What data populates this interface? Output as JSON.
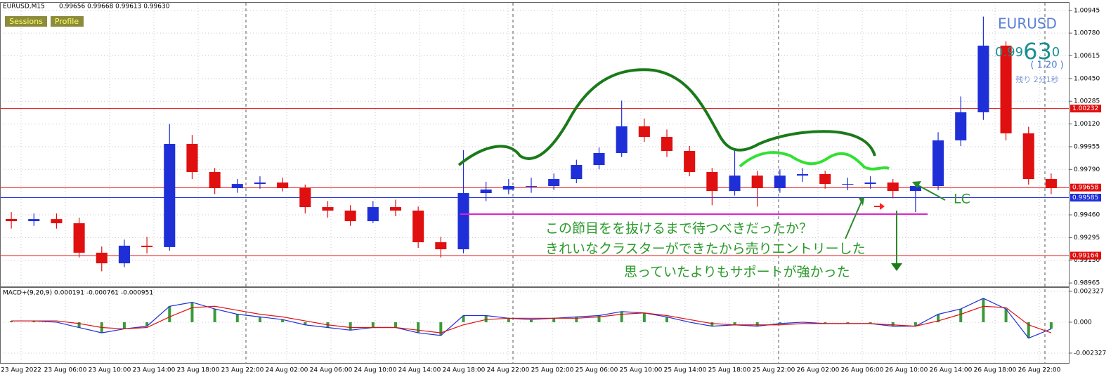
{
  "header": {
    "symbol": "EURUSD,M15",
    "ohlc": "0.99656 0.99668 0.99613 0.99630"
  },
  "buttons": [
    "Sessions",
    "Profile"
  ],
  "ticker": {
    "symbol": "EURUSD",
    "price_prefix": "0.99",
    "price_main": "63",
    "price_suffix": "0",
    "change": "( 1.20 )",
    "timer": "残り 2分1秒"
  },
  "chart_data": {
    "type": "candlestick",
    "time_labels": [
      "23 Aug 2022",
      "23 Aug 06:00",
      "23 Aug 10:00",
      "23 Aug 14:00",
      "23 Aug 18:00",
      "23 Aug 22:00",
      "24 Aug 02:00",
      "24 Aug 06:00",
      "24 Aug 10:00",
      "24 Aug 14:00",
      "24 Aug 18:00",
      "24 Aug 22:00",
      "25 Aug 02:00",
      "25 Aug 06:00",
      "25 Aug 10:00",
      "25 Aug 14:00",
      "25 Aug 18:00",
      "25 Aug 22:00",
      "26 Aug 02:00",
      "26 Aug 06:00",
      "26 Aug 10:00",
      "26 Aug 14:00",
      "26 Aug 18:00",
      "26 Aug 22:00"
    ],
    "open": [
      0.9943,
      0.99414,
      0.99429,
      0.99399,
      0.99185,
      0.99108,
      0.99236,
      0.99226,
      0.99975,
      0.99771,
      0.99654,
      0.99684,
      0.99695,
      0.99654,
      0.99516,
      0.99491,
      0.99414,
      0.99516,
      0.99491,
      0.99261,
      0.9921,
      0.99618,
      0.99644,
      0.99669,
      0.99669,
      0.9972,
      0.99822,
      0.99909,
      1.00103,
      1.00026,
      0.99924,
      0.99771,
      0.99633,
      0.99745,
      0.99654,
      0.99745,
      0.99756,
      0.99684,
      0.99684,
      0.99695,
      0.99633,
      0.99669,
      1.00001,
      1.00205,
      1.00689,
      1.00052,
      0.9972
    ],
    "high": [
      0.9948,
      0.9947,
      0.9947,
      0.9944,
      0.9923,
      0.9928,
      0.993,
      1.0012,
      1.0004,
      0.998,
      0.9972,
      0.9974,
      0.9973,
      0.9968,
      0.9956,
      0.9953,
      0.9956,
      0.9957,
      0.9952,
      0.993,
      0.9993,
      0.997,
      0.9972,
      0.9973,
      0.9976,
      0.9986,
      0.9995,
      1.0029,
      1.0016,
      1.0008,
      0.9996,
      0.998,
      0.9994,
      0.9978,
      0.9979,
      0.998,
      0.9978,
      0.9973,
      0.9974,
      0.9972,
      0.997,
      1.0006,
      1.0032,
      1.009,
      1.0072,
      1.001,
      0.9976
    ],
    "low": [
      0.9936,
      0.9938,
      0.9936,
      0.9915,
      0.9905,
      0.9908,
      0.9918,
      0.992,
      0.9972,
      0.9961,
      0.9962,
      0.9965,
      0.9963,
      0.9947,
      0.9944,
      0.9938,
      0.994,
      0.9945,
      0.9922,
      0.9915,
      0.9918,
      0.9956,
      0.9961,
      0.9962,
      0.9964,
      0.9969,
      0.9979,
      0.9988,
      0.9999,
      0.9988,
      0.9974,
      0.9953,
      0.996,
      0.9952,
      0.9962,
      0.997,
      0.9965,
      0.9964,
      0.9965,
      0.9958,
      0.9948,
      0.9964,
      0.9996,
      1.0015,
      1.0,
      0.9968,
      0.9961
    ],
    "close": [
      0.99414,
      0.99429,
      0.99399,
      0.99185,
      0.99108,
      0.99236,
      0.99226,
      0.99975,
      0.99771,
      0.99654,
      0.99684,
      0.99695,
      0.99654,
      0.99516,
      0.99491,
      0.99414,
      0.99516,
      0.99491,
      0.99261,
      0.9921,
      0.99618,
      0.99644,
      0.99669,
      0.99669,
      0.9972,
      0.99822,
      0.99909,
      1.00103,
      1.00026,
      0.99924,
      0.99771,
      0.99633,
      0.99745,
      0.99654,
      0.99745,
      0.99756,
      0.99684,
      0.99684,
      0.99695,
      0.99633,
      0.99669,
      1.00001,
      1.00205,
      1.00689,
      1.00052,
      0.9972,
      0.99654
    ],
    "up_color": "#1f2fd8",
    "down_color": "#e01010",
    "ylim": [
      0.9894,
      1.01
    ],
    "yticks": [
      1.00945,
      {
        "value": 1.0078,
        "label": "1.00780"
      },
      1.00615,
      {
        "value": 1.0045,
        "label": "1.00450"
      },
      1.00285,
      {
        "value": 1.0012,
        "label": "1.00120"
      },
      0.99955,
      {
        "value": 0.9979,
        "label": "0.99790"
      },
      {
        "value": 0.9946,
        "label": "0.99460"
      },
      0.99295,
      {
        "value": 0.9913,
        "label": "0.99130"
      },
      0.98965
    ],
    "grid": true,
    "levels": [
      {
        "value": 1.00232,
        "color": "#e01010"
      },
      {
        "value": 0.99658,
        "color": "#e01010"
      },
      {
        "value": 0.99585,
        "color": "#1f2fd8"
      },
      {
        "value": 0.99164,
        "color": "#e01010"
      }
    ],
    "macd": {
      "title": "MACD+(9,20,9) 0.000191 -0.000761 -0.000951",
      "ylim": [
        -0.00307,
        0.00259
      ],
      "yticks": [
        0.002327,
        {
          "value": 0,
          "label": "0.000"
        },
        -0.002327
      ],
      "macd": {
        "color": "#1f2fd8",
        "values": [
          0.0001,
          0.0001,
          0.0,
          -0.0004,
          -0.0008,
          -0.0005,
          -0.0003,
          0.0012,
          0.0015,
          0.001,
          0.0006,
          0.0004,
          0.0002,
          -0.0002,
          -0.0004,
          -0.0006,
          -0.0004,
          -0.0004,
          -0.0008,
          -0.001,
          0.0005,
          0.0005,
          0.0003,
          0.0002,
          0.0003,
          0.0004,
          0.0005,
          0.0008,
          0.0007,
          0.0004,
          0.0,
          -0.0003,
          -0.0002,
          -0.0003,
          -0.0001,
          0.0,
          -0.0001,
          -0.0001,
          -0.0001,
          -0.0003,
          -0.0003,
          0.0006,
          0.001,
          0.0018,
          0.001,
          -0.0012,
          -0.0005
        ]
      },
      "signal": {
        "color": "#e01010",
        "values": [
          0.0001,
          0.0001,
          0.0001,
          -0.0001,
          -0.0004,
          -0.0005,
          -0.0004,
          0.0004,
          0.0011,
          0.0012,
          0.0009,
          0.0006,
          0.0004,
          0.0001,
          -0.0002,
          -0.0004,
          -0.0004,
          -0.0004,
          -0.0006,
          -0.0008,
          -0.0002,
          0.0002,
          0.0003,
          0.0003,
          0.0003,
          0.0003,
          0.0004,
          0.0006,
          0.0007,
          0.0005,
          0.0002,
          -0.0001,
          -0.0002,
          -0.0002,
          -0.0002,
          -0.0001,
          -0.0001,
          -0.0001,
          -0.0001,
          -0.0002,
          -0.0003,
          0.0001,
          0.0006,
          0.0012,
          0.0011,
          -0.0002,
          -0.0008
        ]
      },
      "histogram_color": "#3a9a3a"
    }
  },
  "annotations": [
    "この節目をを抜けるまで待つべきだったか？",
    "きれいなクラスターができたから売りエントリーした",
    "思っていたよりもサポートが強かった",
    "LC"
  ]
}
